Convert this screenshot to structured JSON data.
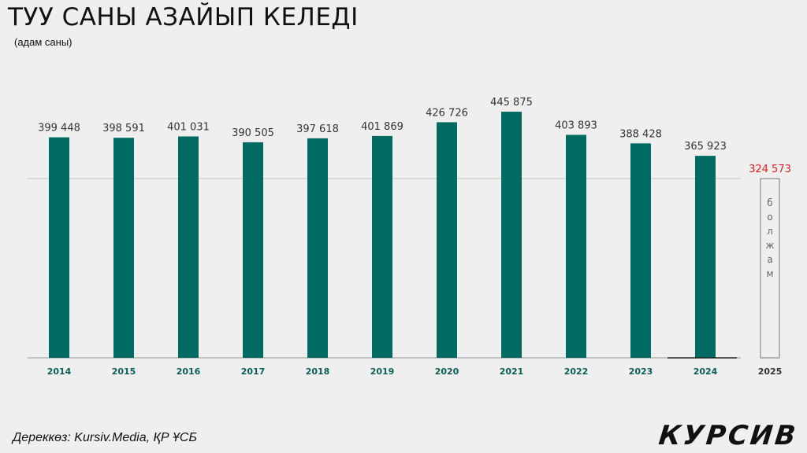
{
  "title": "ТУУ САНЫ АЗАЙЫП КЕЛЕДІ",
  "subtitle": "(адам саны)",
  "source": "Дереккөз: Kursiv.Media, ҚР ҰСБ",
  "logo": "КУРСИВ",
  "colors": {
    "bar": "#006b63",
    "forecast_label": "#e0201e",
    "year_label": "#0a5e58",
    "value_label": "#333333"
  },
  "chart_data": {
    "type": "bar",
    "title": "ТУУ САНЫ АЗАЙЫП КЕЛЕДІ",
    "ylabel": "(адам саны)",
    "categories": [
      "2014",
      "2015",
      "2016",
      "2017",
      "2018",
      "2019",
      "2020",
      "2021",
      "2022",
      "2023",
      "2024",
      "2025"
    ],
    "values": [
      399448,
      398591,
      401031,
      390505,
      397618,
      401869,
      426726,
      445875,
      403893,
      388428,
      365923,
      324573
    ],
    "labels": [
      "399 448",
      "398 591",
      "401 031",
      "390 505",
      "397 618",
      "401 869",
      "426 726",
      "445 875",
      "403 893",
      "388 428",
      "365 923",
      "324 573"
    ],
    "forecast": {
      "category": "2025",
      "value": 324573,
      "label": "324 573",
      "note": "болжам"
    },
    "grid": false
  }
}
